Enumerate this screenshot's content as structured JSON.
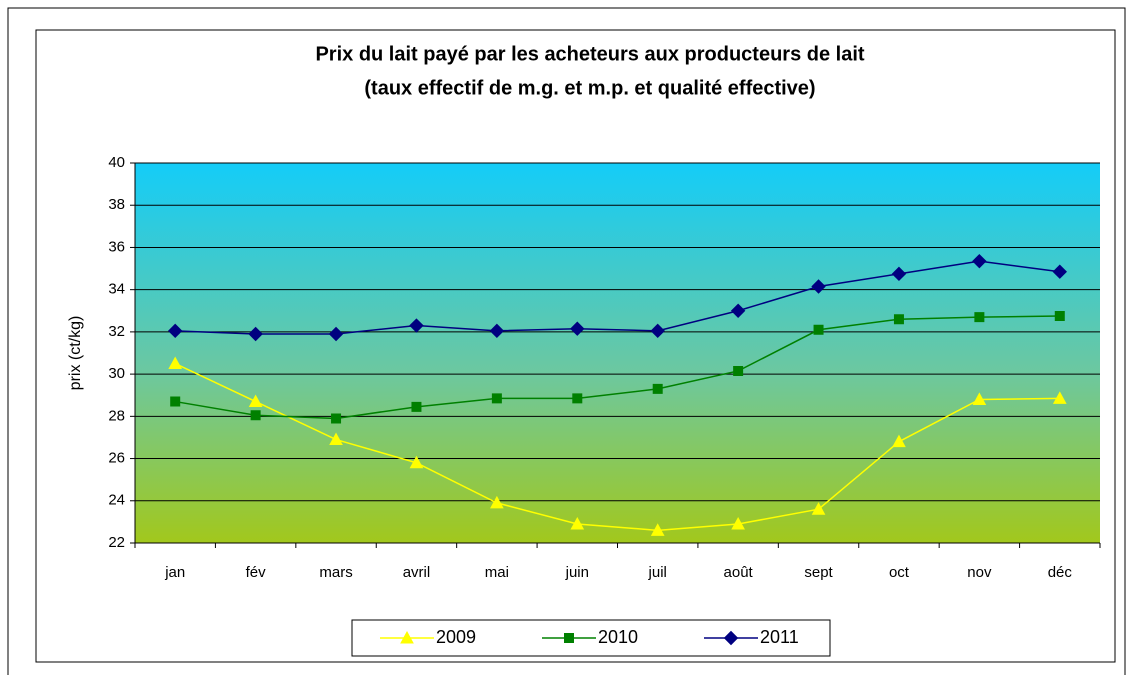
{
  "chart_data": {
    "type": "line",
    "title": [
      "Prix du lait payé par les acheteurs aux producteurs de lait",
      "(taux effectif de m.g. et m.p. et qualité effective)"
    ],
    "ylabel": "prix (ct/kg)",
    "categories": [
      "jan",
      "fév",
      "mars",
      "avril",
      "mai",
      "juin",
      "juil",
      "août",
      "sept",
      "oct",
      "nov",
      "déc"
    ],
    "series": [
      {
        "name": "2009",
        "color": "#ffff00",
        "marker": "triangle",
        "values": [
          30.5,
          28.7,
          26.9,
          25.8,
          23.9,
          22.9,
          22.6,
          22.9,
          23.6,
          26.8,
          28.8,
          28.85
        ]
      },
      {
        "name": "2010",
        "color": "#008000",
        "marker": "square",
        "values": [
          28.7,
          28.05,
          27.9,
          28.45,
          28.85,
          28.85,
          29.3,
          30.15,
          32.1,
          32.6,
          32.7,
          32.75
        ]
      },
      {
        "name": "2011",
        "color": "#000080",
        "marker": "diamond",
        "values": [
          32.05,
          31.9,
          31.9,
          32.3,
          32.05,
          32.15,
          32.05,
          33.0,
          34.15,
          34.75,
          35.35,
          34.85
        ]
      }
    ],
    "ylim": [
      22,
      40
    ],
    "yticks": [
      22,
      24,
      26,
      28,
      30,
      32,
      34,
      36,
      38,
      40
    ],
    "grid": true,
    "legend": "bottom"
  }
}
